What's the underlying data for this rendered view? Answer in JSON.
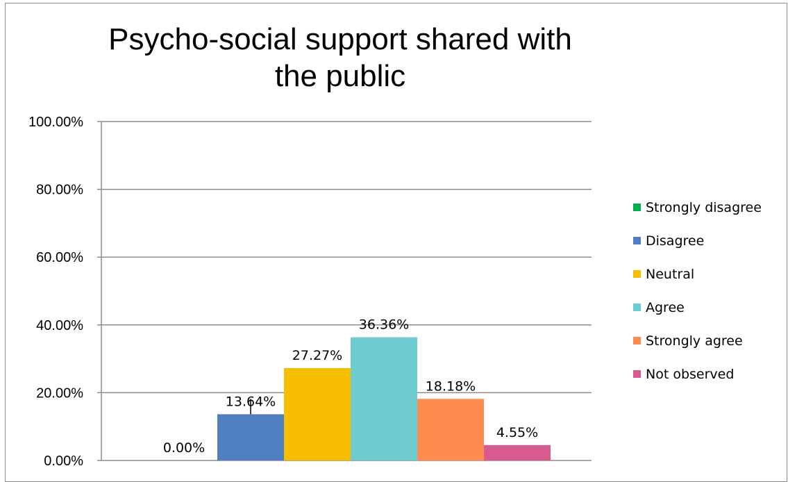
{
  "chart_data": {
    "type": "bar",
    "title": "Psycho-social support shared with the public",
    "ylim": [
      0,
      1
    ],
    "yticks": [
      "0.00%",
      "20.00%",
      "40.00%",
      "60.00%",
      "80.00%",
      "100.00%"
    ],
    "grid": true,
    "legend_position": "right",
    "series": [
      {
        "name": "Strongly disagree",
        "value": 0.0,
        "label": "0.00%",
        "color": "#00b050"
      },
      {
        "name": "Disagree",
        "value": 0.1364,
        "label": "13.64%",
        "color": "#4f7fbf"
      },
      {
        "name": "Neutral",
        "value": 0.2727,
        "label": "27.27%",
        "color": "#f7be00"
      },
      {
        "name": "Agree",
        "value": 0.3636,
        "label": "36.36%",
        "color": "#6ecbcf"
      },
      {
        "name": "Strongly agree",
        "value": 0.1818,
        "label": "18.18%",
        "color": "#ff8c4f"
      },
      {
        "name": "Not observed",
        "value": 0.0455,
        "label": "4.55%",
        "color": "#d75b8e"
      }
    ]
  }
}
